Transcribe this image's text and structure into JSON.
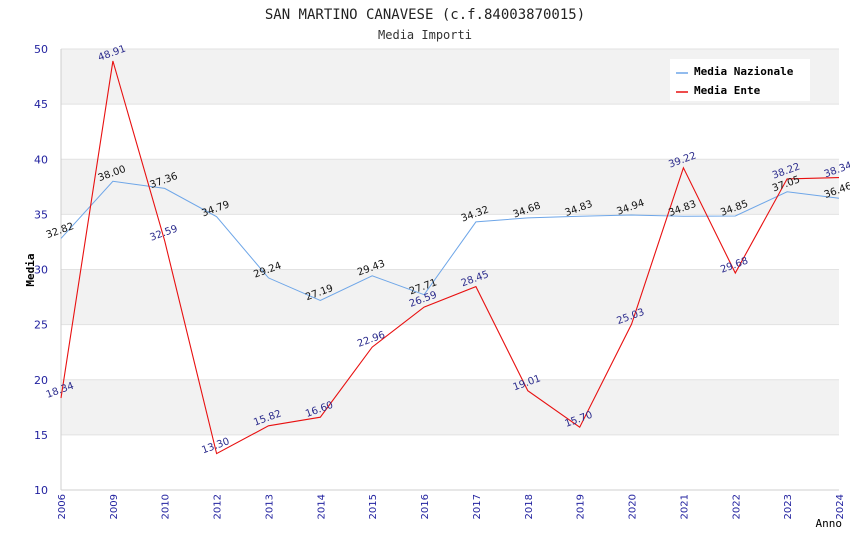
{
  "chart_data": {
    "type": "line",
    "title": "SAN MARTINO CANAVESE (c.f.84003870015)",
    "subtitle": "Media Importi",
    "xlabel": "Anno",
    "ylabel": "Media",
    "ylim": [
      10,
      50
    ],
    "yticks": [
      10,
      15,
      20,
      25,
      30,
      35,
      40,
      45,
      50
    ],
    "grid": true,
    "legend_position": "top-right",
    "categories": [
      "2006",
      "2009",
      "2010",
      "2012",
      "2013",
      "2014",
      "2015",
      "2016",
      "2017",
      "2018",
      "2019",
      "2020",
      "2021",
      "2022",
      "2023",
      "2024"
    ],
    "series": [
      {
        "name": "Media Nazionale",
        "color": "#6ea6e8",
        "values": [
          32.82,
          38.0,
          37.36,
          34.79,
          29.24,
          27.19,
          29.43,
          27.71,
          34.32,
          34.68,
          34.83,
          34.94,
          34.83,
          34.85,
          37.05,
          36.46
        ],
        "labels": [
          "32.82",
          "38.00",
          "37.36",
          "34.79",
          "29.24",
          "27.19",
          "29.43",
          "27.71",
          "34.32",
          "34.68",
          "34.83",
          "34.94",
          "34.83",
          "34.85",
          "37.05",
          "36.46"
        ]
      },
      {
        "name": "Media Ente",
        "color": "#e81010",
        "values": [
          18.34,
          48.91,
          32.59,
          13.3,
          15.82,
          16.6,
          22.96,
          26.59,
          28.45,
          19.01,
          15.7,
          25.03,
          39.22,
          29.68,
          38.22,
          38.34
        ],
        "labels": [
          "18.34",
          "48.91",
          "32.59",
          "13.30",
          "15.82",
          "16.60",
          "22.96",
          "26.59",
          "28.45",
          "19.01",
          "15.70",
          "25.03",
          "39.22",
          "29.68",
          "38.22",
          "38.34"
        ]
      }
    ]
  }
}
